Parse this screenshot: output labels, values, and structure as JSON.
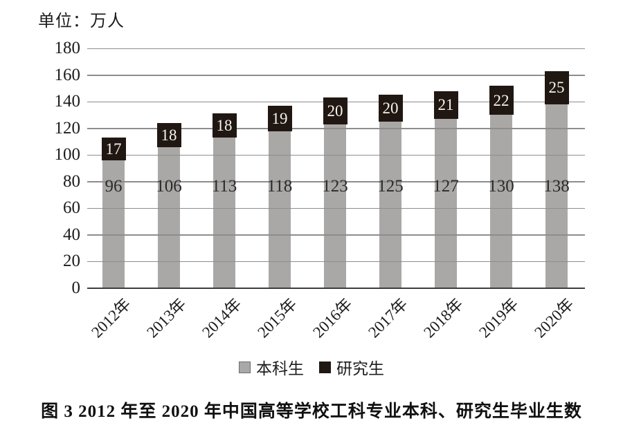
{
  "unit_label": "单位：万人",
  "caption": "图 3  2012 年至 2020 年中国高等学校工科专业本科、研究生毕业生数",
  "colors": {
    "undergrad": "#aaa8a6",
    "grad": "#211712",
    "gridline": "#8d8d8d",
    "axis": "#3c3c3c",
    "label_on_grad": "#f7f3ee",
    "label_on_undergrad": "#2b2b2b",
    "swatch_border": "#6c6c6c"
  },
  "chart_data": {
    "type": "bar",
    "stacked": true,
    "title": "图 3  2012 年至 2020 年中国高等学校工科专业本科、研究生毕业生数",
    "unit": "单位：万人",
    "categories": [
      "2012年",
      "2013年",
      "2014年",
      "2015年",
      "2016年",
      "2017年",
      "2018年",
      "2019年",
      "2020年"
    ],
    "series": [
      {
        "name": "本科生",
        "values": [
          96,
          106,
          113,
          118,
          123,
          125,
          127,
          130,
          138
        ]
      },
      {
        "name": "研究生",
        "values": [
          17,
          18,
          18,
          19,
          20,
          20,
          21,
          22,
          25
        ]
      }
    ],
    "ylim": [
      0,
      180
    ],
    "ytick_step": 20,
    "yticks": [
      0,
      20,
      40,
      60,
      80,
      100,
      120,
      140,
      160,
      180
    ],
    "grid": true,
    "legend_position": "bottom"
  }
}
